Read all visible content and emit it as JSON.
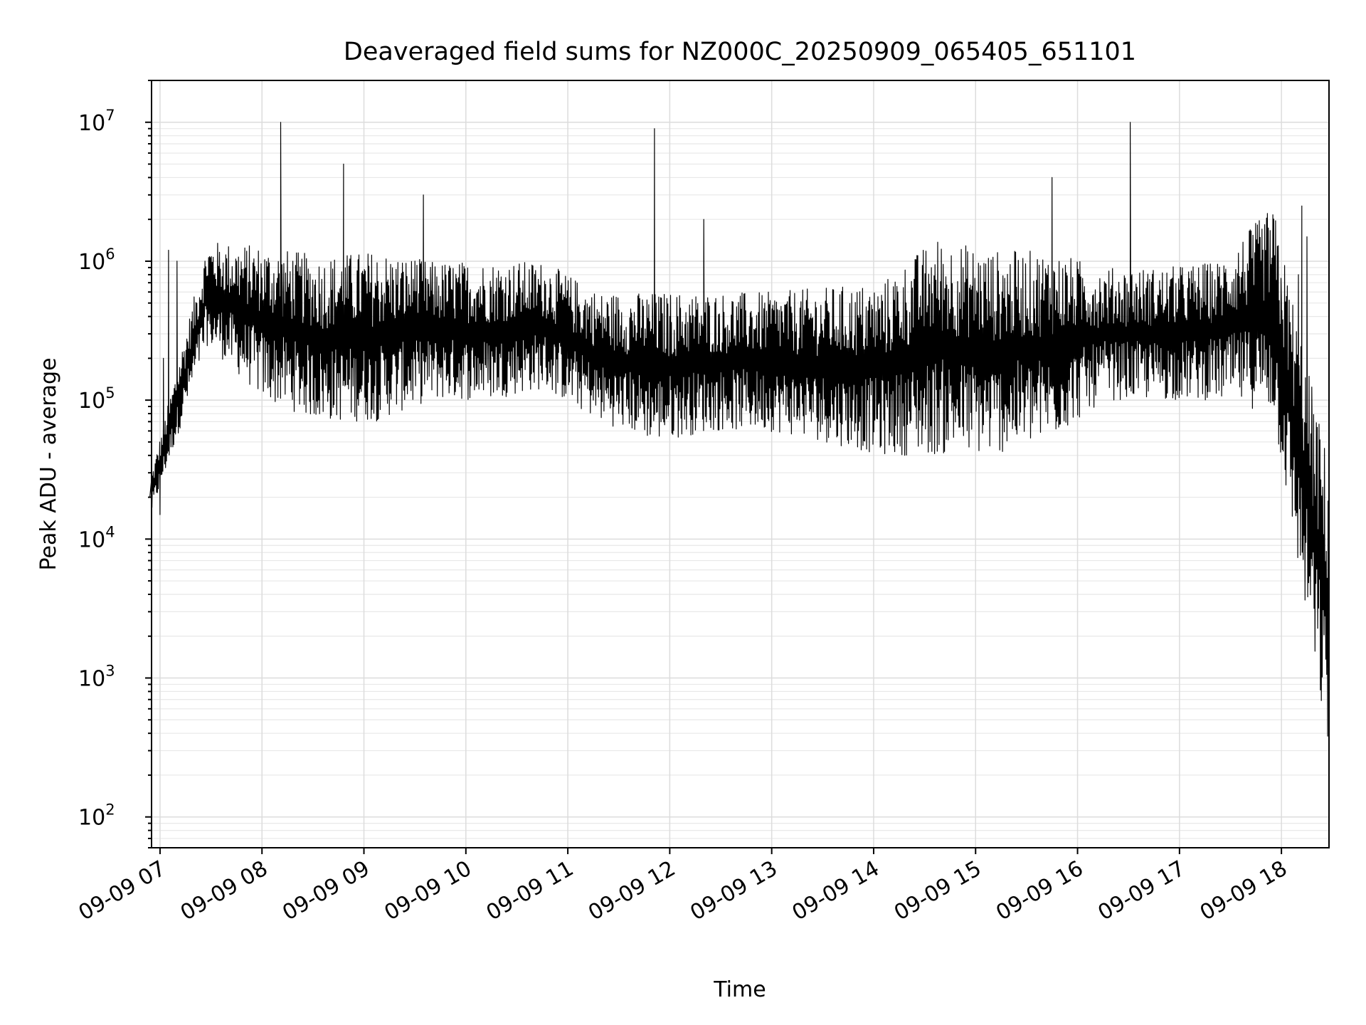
{
  "chart_data": {
    "type": "line",
    "title": "Deaveraged field sums for NZ000C_20250909_065405_651101",
    "xlabel": "Time",
    "ylabel": "Peak ADU - average",
    "yscale": "log",
    "ylim": [
      60,
      20000000
    ],
    "xlim": [
      "2025-09-09 06:55",
      "2025-09-09 18:28"
    ],
    "grid": "on (major and minor)",
    "line_color": "#000000",
    "x_ticks": [
      "2025-09-09 07:00",
      "2025-09-09 08:00",
      "2025-09-09 09:00",
      "2025-09-09 10:00",
      "2025-09-09 11:00",
      "2025-09-09 12:00",
      "2025-09-09 13:00",
      "2025-09-09 14:00",
      "2025-09-09 15:00",
      "2025-09-09 16:00",
      "2025-09-09 17:00",
      "2025-09-09 18:00"
    ],
    "x_tick_labels": [
      "09-09 07",
      "09-09 08",
      "09-09 09",
      "09-09 10",
      "09-09 11",
      "09-09 12",
      "09-09 13",
      "09-09 14",
      "09-09 15",
      "09-09 16",
      "09-09 17",
      "09-09 18"
    ],
    "y_ticks": [
      100,
      1000,
      10000,
      100000,
      1000000,
      10000000
    ],
    "y_tick_labels": [
      {
        "base": "10",
        "exp": "2"
      },
      {
        "base": "10",
        "exp": "3"
      },
      {
        "base": "10",
        "exp": "4"
      },
      {
        "base": "10",
        "exp": "5"
      },
      {
        "base": "10",
        "exp": "6"
      },
      {
        "base": "10",
        "exp": "7"
      }
    ],
    "series": [
      {
        "x": [
          "2025-09-09 06:54",
          "2025-09-09 06:56",
          "2025-09-09 06:58",
          "2025-09-09 07:00",
          "2025-09-09 07:02",
          "2025-09-09 07:05",
          "2025-09-09 07:10",
          "2025-09-09 07:20",
          "2025-09-09 07:30",
          "2025-09-09 07:40",
          "2025-09-09 07:50",
          "2025-09-09 07:55",
          "2025-09-09 08:00",
          "2025-09-09 08:10",
          "2025-09-09 08:11",
          "2025-09-09 08:12",
          "2025-09-09 08:20",
          "2025-09-09 08:30",
          "2025-09-09 08:40",
          "2025-09-09 08:48",
          "2025-09-09 08:50",
          "2025-09-09 09:00",
          "2025-09-09 09:10",
          "2025-09-09 09:20",
          "2025-09-09 09:30",
          "2025-09-09 09:35",
          "2025-09-09 09:40",
          "2025-09-09 09:50",
          "2025-09-09 10:00",
          "2025-09-09 10:15",
          "2025-09-09 10:30",
          "2025-09-09 10:45",
          "2025-09-09 11:00",
          "2025-09-09 11:15",
          "2025-09-09 11:30",
          "2025-09-09 11:40",
          "2025-09-09 11:50",
          "2025-09-09 11:51",
          "2025-09-09 11:52",
          "2025-09-09 12:00",
          "2025-09-09 12:15",
          "2025-09-09 12:20",
          "2025-09-09 12:30",
          "2025-09-09 12:45",
          "2025-09-09 13:00",
          "2025-09-09 13:15",
          "2025-09-09 13:30",
          "2025-09-09 13:45",
          "2025-09-09 14:00",
          "2025-09-09 14:15",
          "2025-09-09 14:30",
          "2025-09-09 14:45",
          "2025-09-09 15:00",
          "2025-09-09 15:15",
          "2025-09-09 15:30",
          "2025-09-09 15:45",
          "2025-09-09 16:00",
          "2025-09-09 16:15",
          "2025-09-09 16:30",
          "2025-09-09 16:31",
          "2025-09-09 16:32",
          "2025-09-09 16:45",
          "2025-09-09 17:00",
          "2025-09-09 17:15",
          "2025-09-09 17:30",
          "2025-09-09 17:45",
          "2025-09-09 18:00",
          "2025-09-09 18:10",
          "2025-09-09 18:12",
          "2025-09-09 18:15",
          "2025-09-09 18:18",
          "2025-09-09 18:21",
          "2025-09-09 18:24",
          "2025-09-09 18:27",
          "2025-09-09 18:28"
        ],
        "values": [
          20000,
          30000,
          25000,
          15000,
          200000,
          1200000,
          1000000,
          400000,
          300000,
          500000,
          350000,
          600000,
          400000,
          500000,
          10000000,
          600000,
          300000,
          400000,
          300000,
          5000000,
          500000,
          250000,
          300000,
          400000,
          1000000,
          3000000,
          600000,
          400000,
          500000,
          300000,
          400000,
          150000,
          200000,
          100000,
          80000,
          150000,
          400000,
          9000000,
          500000,
          400000,
          300000,
          2000000,
          200000,
          150000,
          250000,
          200000,
          180000,
          200000,
          150000,
          180000,
          200000,
          180000,
          250000,
          300000,
          400000,
          4000000,
          500000,
          300000,
          600000,
          10000000,
          800000,
          500000,
          300000,
          400000,
          500000,
          400000,
          500000,
          800000,
          2500000,
          1500000,
          80000,
          20000,
          15000,
          5000,
          250
        ]
      }
    ],
    "envelope": {
      "upper": [
        30000,
        1400000,
        1300000,
        1100000,
        1200000,
        1000000,
        1000000,
        1000000,
        600000,
        600000,
        600000,
        600000,
        650000,
        700000,
        1500000,
        1200000,
        1200000,
        900000,
        900000,
        1000000,
        2500000,
        35000
      ],
      "lower": [
        15000,
        250000,
        100000,
        70000,
        70000,
        100000,
        100000,
        120000,
        70000,
        50000,
        60000,
        60000,
        50000,
        40000,
        40000,
        40000,
        50000,
        100000,
        100000,
        100000,
        80000,
        250
      ]
    }
  }
}
